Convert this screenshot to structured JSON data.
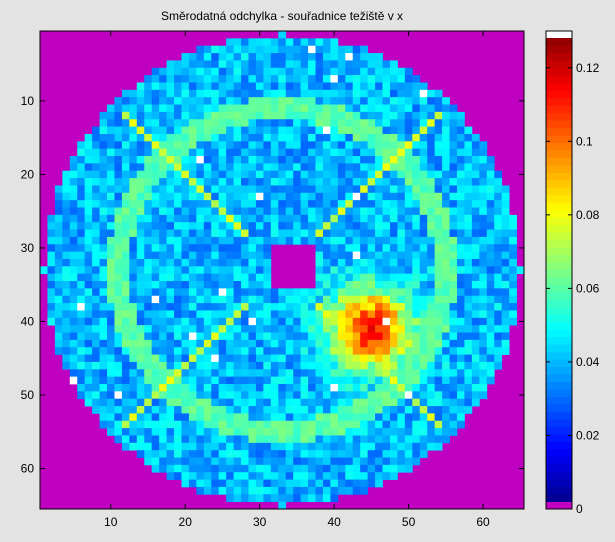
{
  "chart_data": {
    "type": "heatmap",
    "title": "Směrodatná odchylka - souřadnice težiště v x",
    "xlabel": "",
    "ylabel": "",
    "grid_size": [
      65,
      65
    ],
    "xlim": [
      0.5,
      65.5
    ],
    "ylim": [
      0.5,
      65.5
    ],
    "x_ticks": [
      10,
      20,
      30,
      40,
      50,
      60
    ],
    "y_ticks": [
      10,
      20,
      30,
      40,
      50,
      60
    ],
    "y_axis_direction": "reversed",
    "colorbar": {
      "colormap": "jet",
      "range": [
        0,
        0.13
      ],
      "ticks": [
        0,
        0.02,
        0.04,
        0.06,
        0.08,
        0.1,
        0.12
      ],
      "tick_labels": [
        "0",
        "0.02",
        "0.04",
        "0.06",
        "0.08",
        "0.1",
        "0.12"
      ],
      "placement": "right"
    },
    "background_color": "#c000c0",
    "masked_center": {
      "row_range": [
        30,
        35
      ],
      "col_range": [
        32,
        37
      ]
    },
    "region": {
      "shape": "disk",
      "center": [
        33,
        33
      ],
      "radius": 32
    },
    "typical_value": 0.04,
    "hotspot": {
      "center": [
        41,
        45
      ],
      "peak_value": 0.11
    },
    "diagonal_streak_value": 0.075,
    "outer_ring_value": 0.06
  }
}
